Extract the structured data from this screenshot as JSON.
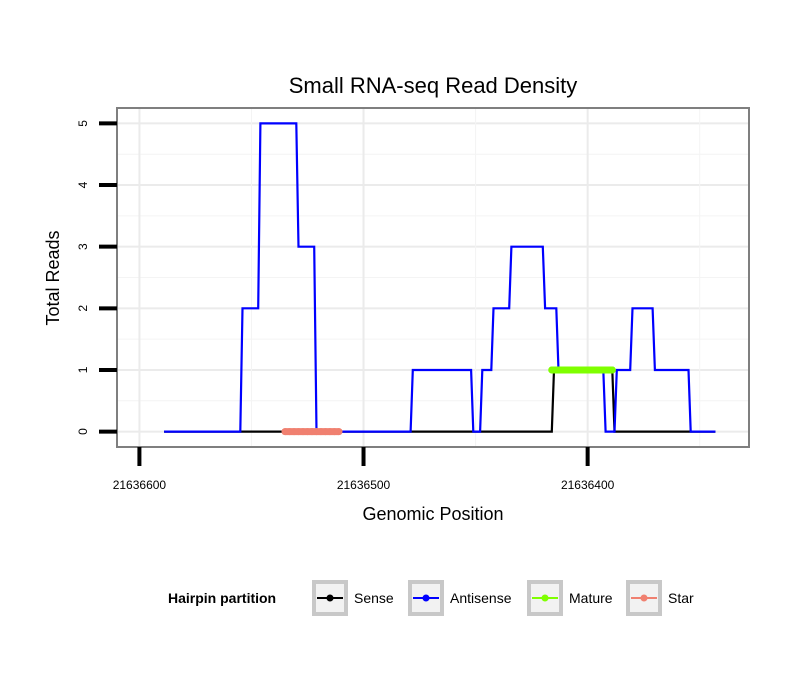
{
  "chart_data": {
    "type": "line",
    "title": "Small RNA-seq Read Density",
    "xlabel": "Genomic Position",
    "ylabel": "Total Reads",
    "x_reversed": true,
    "xlim": [
      21636610,
      21636328
    ],
    "ylim": [
      -0.25,
      5.25
    ],
    "x_ticks": [
      21636600,
      21636500,
      21636400
    ],
    "x_tick_labels": [
      "21636600",
      "21636500",
      "21636400"
    ],
    "y_ticks": [
      0,
      1,
      2,
      3,
      4,
      5
    ],
    "y_tick_labels": [
      "0",
      "1",
      "2",
      "3",
      "4",
      "5"
    ],
    "grid": true,
    "legend": {
      "title": "Hairpin partition",
      "position": "bottom",
      "entries": [
        "Sense",
        "Antisense",
        "Mature",
        "Star"
      ]
    },
    "series": [
      {
        "name": "Sense",
        "color": "#000000",
        "x": [
          21636589,
          21636416,
          21636415,
          21636409,
          21636408,
          21636389,
          21636388,
          21636343
        ],
        "y": [
          0,
          0,
          1,
          1,
          1,
          1,
          0,
          0
        ]
      },
      {
        "name": "Antisense",
        "color": "#0000ff",
        "x": [
          21636589,
          21636555,
          21636554,
          21636547,
          21636546,
          21636530,
          21636529,
          21636522,
          21636521,
          21636479,
          21636478,
          21636452,
          21636451,
          21636448,
          21636447,
          21636443,
          21636442,
          21636435,
          21636434,
          21636420,
          21636419,
          21636414,
          21636413,
          21636393,
          21636392,
          21636388,
          21636387,
          21636381,
          21636380,
          21636371,
          21636370,
          21636355,
          21636354,
          21636348,
          21636347,
          21636343
        ],
        "y": [
          0,
          0,
          2,
          2,
          5,
          5,
          3,
          3,
          0,
          0,
          1,
          1,
          0,
          0,
          1,
          1,
          2,
          2,
          3,
          3,
          2,
          2,
          1,
          1,
          0,
          0,
          1,
          1,
          2,
          2,
          1,
          1,
          0,
          0,
          0,
          0
        ]
      },
      {
        "name": "Mature",
        "color": "#7fff00",
        "x": [
          21636416,
          21636389
        ],
        "y": [
          1,
          1
        ]
      },
      {
        "name": "Star",
        "color": "#f08070",
        "x": [
          21636535,
          21636511
        ],
        "y": [
          0,
          0
        ]
      }
    ]
  }
}
